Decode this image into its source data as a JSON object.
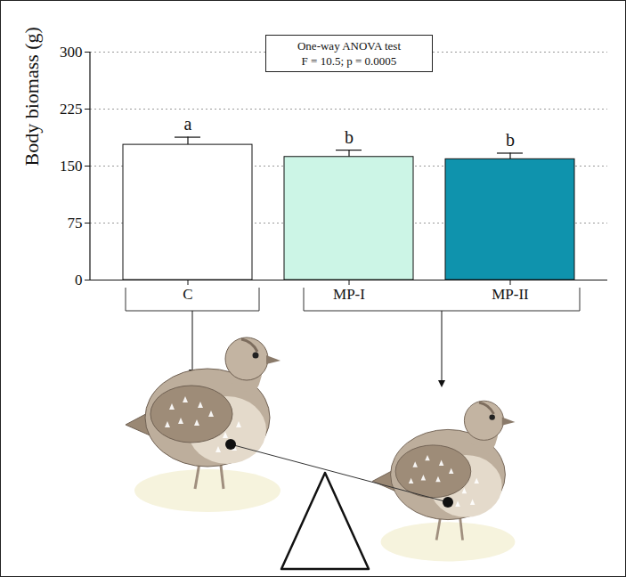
{
  "chart_data": {
    "type": "bar",
    "ylabel": "Body biomass (g)",
    "categories": [
      "C",
      "MP-I",
      "MP-II"
    ],
    "values": [
      178,
      162,
      159
    ],
    "errors": [
      10,
      9,
      8
    ],
    "colors": [
      "#ffffff",
      "#ccf5e6",
      "#0f93ad"
    ],
    "significance_letters": [
      "a",
      "b",
      "b"
    ],
    "annotation_box": {
      "title": "One-way ANOVA test",
      "text": "F =  10.5; p =  0.0005"
    },
    "ylim": [
      0,
      300
    ],
    "yticks": [
      0,
      75,
      150,
      225,
      300
    ],
    "grid": true
  }
}
